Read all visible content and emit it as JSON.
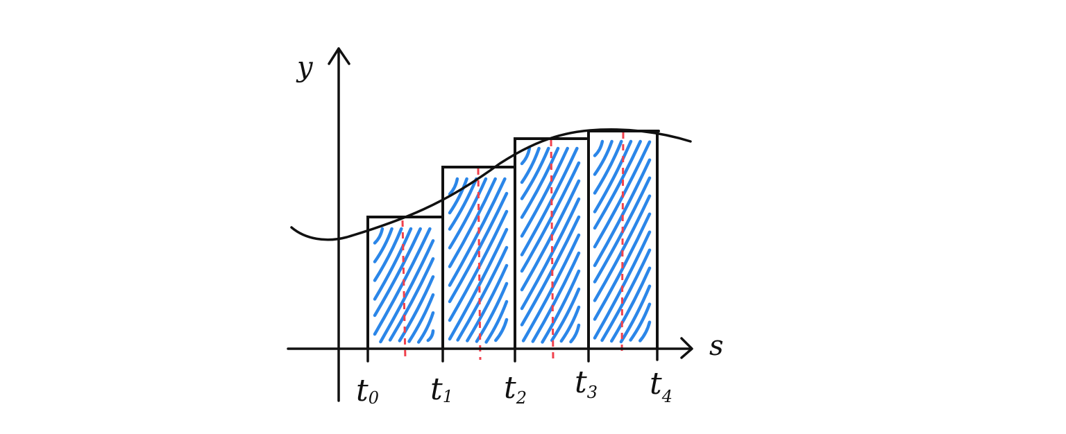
{
  "diagram": {
    "axes": {
      "x_label": "s",
      "y_label": "y"
    },
    "partition_points": [
      {
        "main": "t",
        "sub": "0"
      },
      {
        "main": "t",
        "sub": "1"
      },
      {
        "main": "t",
        "sub": "2"
      },
      {
        "main": "t",
        "sub": "3"
      },
      {
        "main": "t",
        "sub": "4"
      }
    ],
    "colors": {
      "ink": "#111111",
      "hatch": "#2b86e8",
      "sample_line": "#f0414d",
      "background": "#ffffff"
    }
  }
}
